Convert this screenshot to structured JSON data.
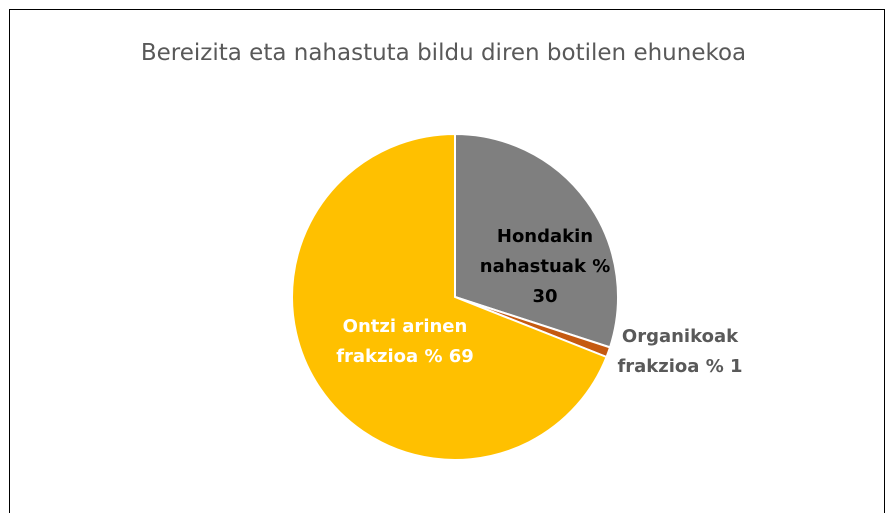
{
  "chart_data": {
    "type": "pie",
    "title": "Bereizita eta nahastuta bildu diren botilen ehunekoa",
    "categories": [
      "Hondakin nahastuak",
      "Organikoak frakzioa",
      "Ontzi arinen frakzioa"
    ],
    "values": [
      30,
      1,
      69
    ],
    "value_labels": [
      "% 30",
      "% 1",
      "% 69"
    ],
    "colors": [
      "#7f7f7f",
      "#c55a11",
      "#ffc000"
    ]
  }
}
